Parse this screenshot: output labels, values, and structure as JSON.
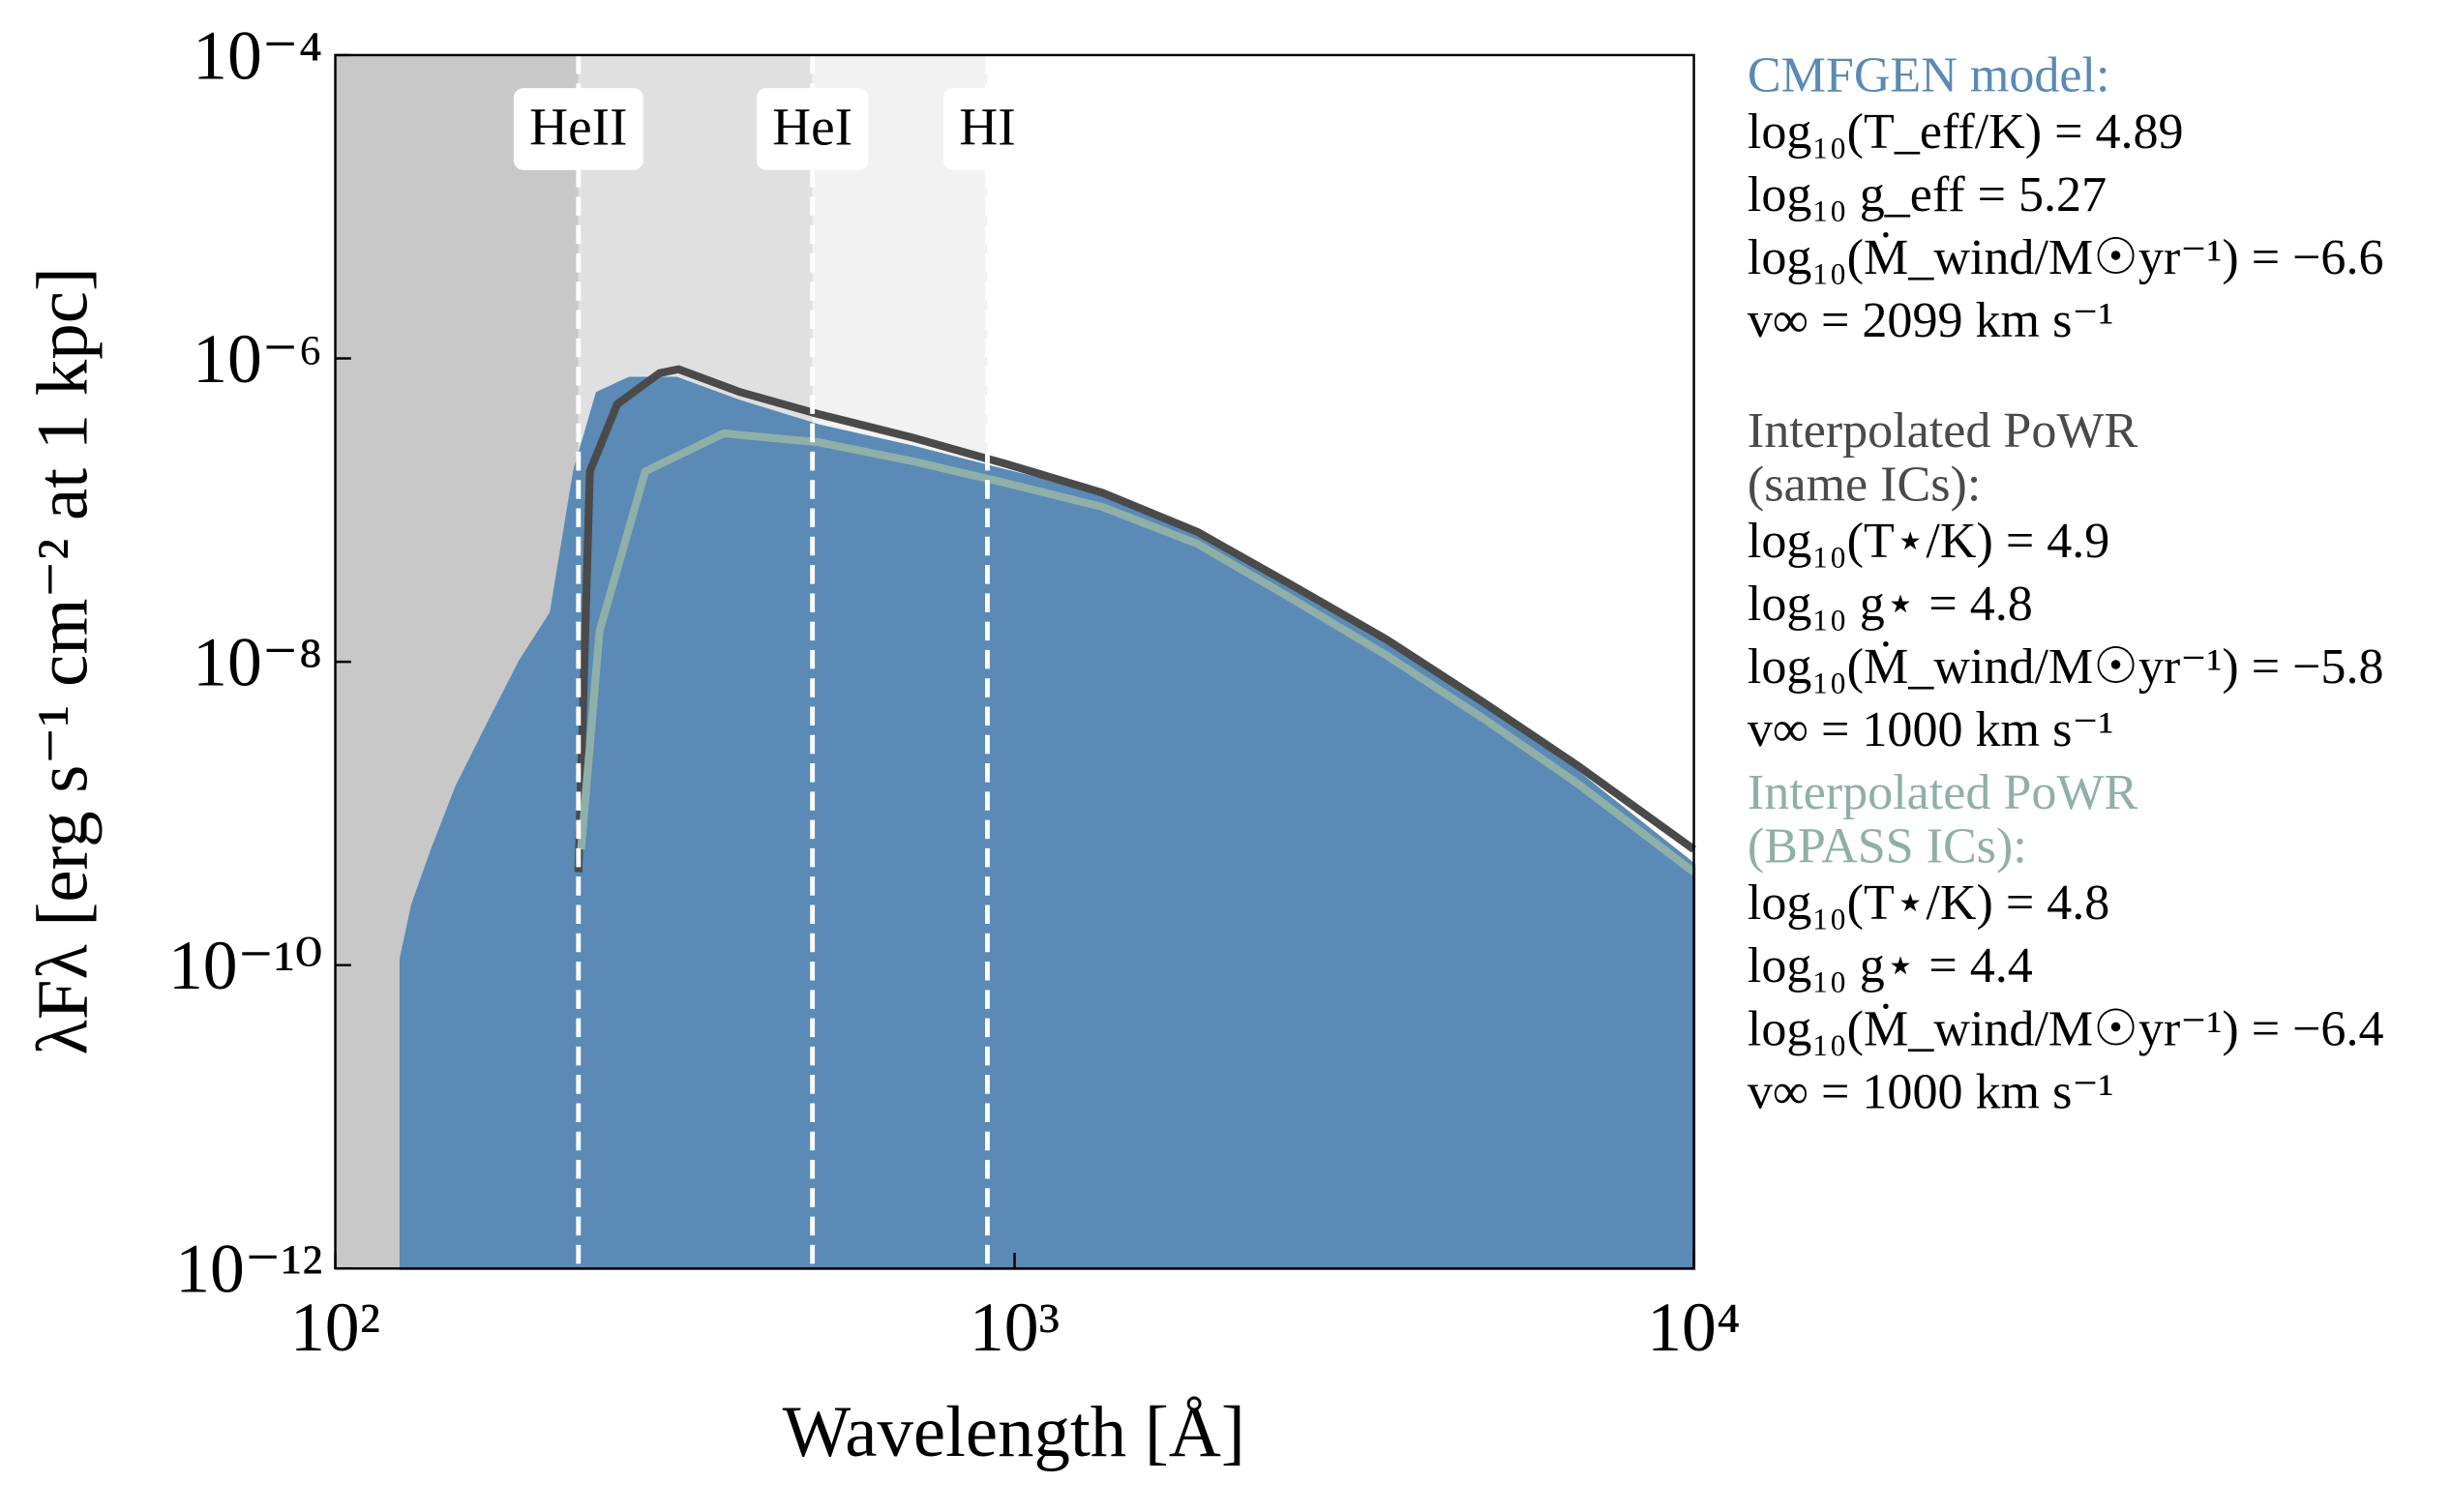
{
  "chart_data": {
    "type": "line",
    "xlabel": "Wavelength [Å]",
    "ylabel": "λFλ [erg s⁻¹ cm⁻² at 1 kpc]",
    "xscale": "log",
    "yscale": "log",
    "xlim": [
      100,
      10000
    ],
    "ylim": [
      1e-12,
      0.0001
    ],
    "xticks": [
      {
        "value": 100,
        "label": "10²"
      },
      {
        "value": 1000,
        "label": "10³"
      },
      {
        "value": 10000,
        "label": "10⁴"
      }
    ],
    "yticks": [
      {
        "value": 1e-12,
        "label": "10⁻¹²"
      },
      {
        "value": 1e-10,
        "label": "10⁻¹⁰"
      },
      {
        "value": 1e-08,
        "label": "10⁻⁸"
      },
      {
        "value": 1e-06,
        "label": "10⁻⁶"
      },
      {
        "value": 0.0001,
        "label": "10⁻⁴"
      }
    ],
    "base_color": "#c8c8c8",
    "regions": [
      {
        "label": "HeII",
        "x": 228,
        "color": "#e0e0e0"
      },
      {
        "label": "HeI",
        "x": 504,
        "color": "#f2f2f2"
      },
      {
        "label": "HI",
        "x": 912,
        "color": "#ffffff"
      }
    ],
    "series": [
      {
        "name": "CMFGEN model:",
        "color": "#5a8ab5",
        "fill": true,
        "params": [
          "log₁₀(T_eff/K) = 4.89",
          "log₁₀ g_eff = 5.27",
          "log₁₀(Ṁ_wind/M☉yr⁻¹) = −6.6",
          "v∞ = 2099 km s⁻¹"
        ],
        "x": [
          125,
          130,
          139,
          151,
          168,
          187,
          208,
          225,
          243,
          271,
          318,
          394,
          514,
          708,
          977,
          1347,
          1857,
          2560,
          3530,
          4870,
          6710,
          10000
        ],
        "values": [
          1.1e-10,
          2.5e-10,
          5.8e-10,
          1.5e-09,
          3.9e-09,
          1e-08,
          2.1e-08,
          1.8e-07,
          5.9e-07,
          7.4e-07,
          7.4e-07,
          5.2e-07,
          3.6e-07,
          2.6e-07,
          1.8e-07,
          1.25e-07,
          6.9e-08,
          3e-08,
          1.3e-08,
          5e-09,
          1.9e-09,
          4.6e-10
        ]
      },
      {
        "name": "Interpolated PoWR (same ICs):",
        "color": "#4a4a4a",
        "fill": false,
        "params": [
          "log₁₀(T⋆/K) = 4.9",
          "log₁₀ g⋆ = 4.8",
          "log₁₀(Ṁ_wind/M☉yr⁻¹) = −5.8",
          "v∞ = 1000 km s⁻¹"
        ],
        "x": [
          228,
          237,
          260,
          300,
          320,
          394,
          514,
          708,
          977,
          1347,
          1857,
          2560,
          3530,
          4870,
          6710,
          10000
        ],
        "values": [
          4.1e-10,
          1.8e-07,
          5e-07,
          8e-07,
          8.5e-07,
          6e-07,
          4.3e-07,
          3e-07,
          2e-07,
          1.3e-07,
          7.2e-08,
          3.2e-08,
          1.4e-08,
          5.5e-09,
          2.1e-09,
          5.8e-10
        ]
      },
      {
        "name": "Interpolated PoWR (BPASS ICs):",
        "color": "#8fb0a8",
        "fill": false,
        "params": [
          "log₁₀(T⋆/K) = 4.8",
          "log₁₀ g⋆ = 4.4",
          "log₁₀(Ṁ_wind/M☉yr⁻¹) = −6.4",
          "v∞ = 1000 km s⁻¹"
        ],
        "x": [
          230,
          245,
          286,
          373,
          514,
          708,
          977,
          1347,
          1857,
          2560,
          3530,
          4870,
          6710,
          10000
        ],
        "values": [
          5.8e-10,
          1.6e-08,
          1.8e-07,
          3.2e-07,
          2.8e-07,
          2.1e-07,
          1.5e-07,
          1.05e-07,
          6e-08,
          2.6e-08,
          1.1e-08,
          4.3e-09,
          1.6e-09,
          4.1e-10
        ]
      }
    ]
  }
}
